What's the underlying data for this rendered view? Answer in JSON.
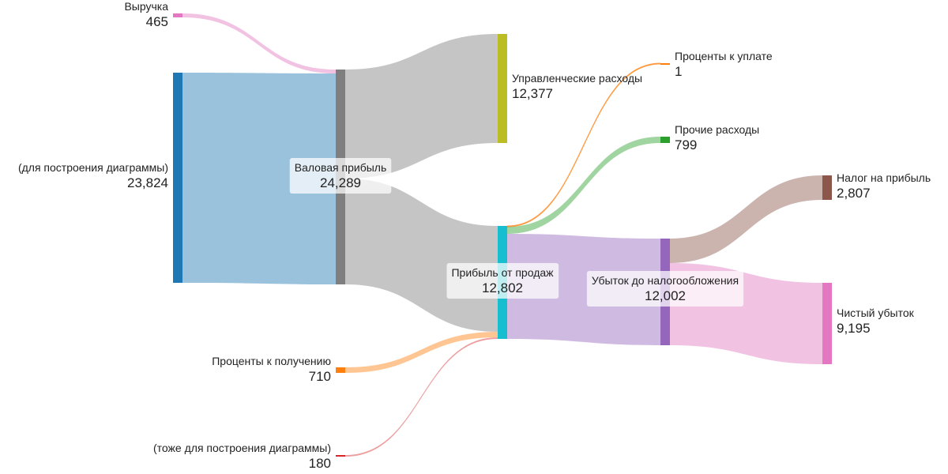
{
  "chart_data": {
    "type": "sankey",
    "nodes": [
      {
        "id": "revenue",
        "name": "Выручка",
        "value": "465",
        "color": "#e377c2"
      },
      {
        "id": "filler1",
        "name": "(для построения диаграммы)",
        "value": "23,824",
        "color": "#1f77b4"
      },
      {
        "id": "interest_income",
        "name": "Проценты к получению",
        "value": "710",
        "color": "#ff7f0e"
      },
      {
        "id": "filler2",
        "name": "(тоже для построения диаграммы)",
        "value": "180",
        "color": "#d62728"
      },
      {
        "id": "gross",
        "name": "Валовая прибыль",
        "value": "24,289",
        "color": "#7f7f7f"
      },
      {
        "id": "admin",
        "name": "Управленческие расходы",
        "value": "12,377",
        "color": "#bcbd22"
      },
      {
        "id": "sales_profit",
        "name": "Прибыль от продаж",
        "value": "12,802",
        "color": "#17becf"
      },
      {
        "id": "interest_pay",
        "name": "Проценты к уплате",
        "value": "1",
        "color": "#ff7f0e"
      },
      {
        "id": "other_exp",
        "name": "Прочие расходы",
        "value": "799",
        "color": "#2ca02c"
      },
      {
        "id": "pretax",
        "name": "Убыток до налогообложения",
        "value": "12,002",
        "color": "#9467bd"
      },
      {
        "id": "tax",
        "name": "Налог на прибыль",
        "value": "2,807",
        "color": "#8c564b"
      },
      {
        "id": "net_loss",
        "name": "Чистый убыток",
        "value": "9,195",
        "color": "#e377c2"
      }
    ],
    "links": [
      {
        "source": "revenue",
        "target": "gross",
        "value": 465,
        "color": "#e377c2"
      },
      {
        "source": "filler1",
        "target": "gross",
        "value": 23824,
        "color": "#1f77b4"
      },
      {
        "source": "gross",
        "target": "admin",
        "value": 12377,
        "color": "#7f7f7f"
      },
      {
        "source": "gross",
        "target": "sales_profit",
        "value": 11912,
        "color": "#7f7f7f"
      },
      {
        "source": "interest_income",
        "target": "sales_profit",
        "value": 710,
        "color": "#ff7f0e"
      },
      {
        "source": "filler2",
        "target": "sales_profit",
        "value": 180,
        "color": "#d62728"
      },
      {
        "source": "sales_profit",
        "target": "interest_pay",
        "value": 1,
        "color": "#ff7f0e"
      },
      {
        "source": "sales_profit",
        "target": "other_exp",
        "value": 799,
        "color": "#2ca02c"
      },
      {
        "source": "sales_profit",
        "target": "pretax",
        "value": 12002,
        "color": "#9467bd"
      },
      {
        "source": "pretax",
        "target": "tax",
        "value": 2807,
        "color": "#8c564b"
      },
      {
        "source": "pretax",
        "target": "net_loss",
        "value": 9195,
        "color": "#e377c2"
      }
    ]
  }
}
